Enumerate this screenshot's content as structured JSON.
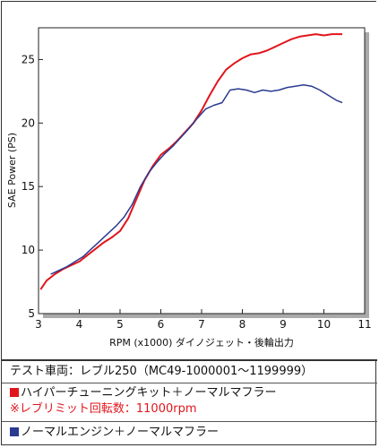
{
  "chart_data": {
    "type": "line",
    "xlabel": "RPM (x1000) ダイノジェット・後輪出力",
    "ylabel": "SAE Power (PS)",
    "xlim": [
      3,
      11
    ],
    "ylim": [
      5,
      27.5
    ],
    "xticks": [
      3,
      4,
      5,
      6,
      7,
      8,
      9,
      10,
      11
    ],
    "yticks": [
      5,
      10,
      15,
      20,
      25
    ],
    "grid": false,
    "series": [
      {
        "name": "ハイパーチューニングキット＋ノーマルマフラー",
        "color": "#e0161d",
        "x": [
          3.05,
          3.2,
          3.4,
          3.6,
          3.8,
          4.0,
          4.2,
          4.4,
          4.6,
          4.8,
          5.0,
          5.2,
          5.4,
          5.6,
          5.8,
          6.0,
          6.2,
          6.4,
          6.6,
          6.8,
          7.0,
          7.2,
          7.4,
          7.6,
          7.8,
          8.0,
          8.2,
          8.4,
          8.6,
          8.8,
          9.0,
          9.2,
          9.4,
          9.6,
          9.8,
          10.0,
          10.2,
          10.45
        ],
        "y": [
          6.9,
          7.6,
          8.1,
          8.5,
          8.8,
          9.1,
          9.6,
          10.1,
          10.6,
          11.0,
          11.5,
          12.5,
          14.0,
          15.5,
          16.6,
          17.5,
          18.0,
          18.6,
          19.3,
          20.0,
          21.0,
          22.2,
          23.3,
          24.2,
          24.7,
          25.1,
          25.4,
          25.5,
          25.7,
          26.0,
          26.3,
          26.6,
          26.8,
          26.9,
          27.0,
          26.9,
          27.0,
          27.0
        ]
      },
      {
        "name": "ノーマルエンジン＋ノーマルマフラー",
        "color": "#2b3a8f",
        "x": [
          3.3,
          3.5,
          3.7,
          3.9,
          4.1,
          4.3,
          4.5,
          4.7,
          4.9,
          5.1,
          5.3,
          5.5,
          5.7,
          5.9,
          6.1,
          6.3,
          6.5,
          6.7,
          6.9,
          7.1,
          7.3,
          7.5,
          7.7,
          7.9,
          8.1,
          8.3,
          8.5,
          8.7,
          8.9,
          9.1,
          9.3,
          9.5,
          9.7,
          9.9,
          10.1,
          10.3,
          10.45
        ],
        "y": [
          8.1,
          8.4,
          8.7,
          9.1,
          9.5,
          10.1,
          10.7,
          11.3,
          11.9,
          12.6,
          13.6,
          15.0,
          16.1,
          16.9,
          17.6,
          18.2,
          18.9,
          19.6,
          20.4,
          21.1,
          21.4,
          21.6,
          22.6,
          22.7,
          22.6,
          22.4,
          22.6,
          22.5,
          22.6,
          22.8,
          22.9,
          23.0,
          22.9,
          22.6,
          22.2,
          21.8,
          21.6
        ]
      }
    ]
  },
  "legend": {
    "vehicle": "テスト車両：レブル250（MC49-1000001～1199999）",
    "series1": "ハイパーチューニングキット＋ノーマルマフラー",
    "note": "※レブリミット回転数：11000rpm",
    "series2": "ノーマルエンジン＋ノーマルマフラー"
  }
}
